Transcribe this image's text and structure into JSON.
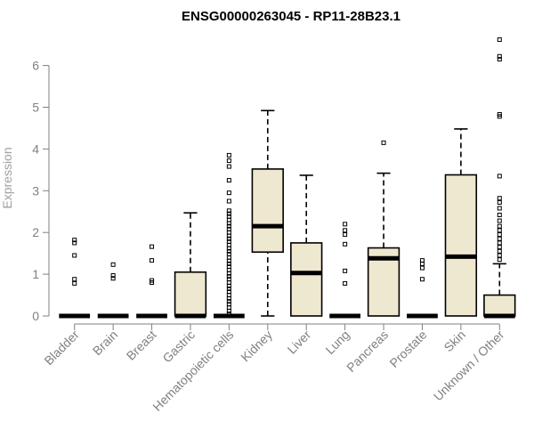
{
  "chart_data": {
    "type": "box",
    "title": "ENSG00000263045 - RP11-28B23.1",
    "xlabel": "",
    "ylabel": "Expression",
    "ylim": [
      0,
      6.7
    ],
    "yticks": [
      "0",
      "1",
      "2",
      "3",
      "4",
      "5",
      "6"
    ],
    "categories": [
      "Bladder",
      "Brain",
      "Breast",
      "Gastric",
      "Hematopoietic cells",
      "Kidney",
      "Liver",
      "Lung",
      "Pancreas",
      "Prostate",
      "Skin",
      "Unknown / Other"
    ],
    "box_fill": "#efe8d0",
    "box_stroke": "#000000",
    "boxes": [
      {
        "category": "Bladder",
        "min": 0,
        "q1": 0,
        "median": 0,
        "q3": 0,
        "max": 0,
        "outliers": [
          0.78,
          0.88,
          1.45,
          1.75,
          1.82
        ]
      },
      {
        "category": "Brain",
        "min": 0,
        "q1": 0,
        "median": 0,
        "q3": 0,
        "max": 0,
        "outliers": [
          0.9,
          0.97,
          1.23
        ]
      },
      {
        "category": "Breast",
        "min": 0,
        "q1": 0,
        "median": 0,
        "q3": 0,
        "max": 0,
        "outliers": [
          0.8,
          0.85,
          1.33,
          1.66
        ]
      },
      {
        "category": "Gastric",
        "min": 0,
        "q1": 0,
        "median": 0,
        "q3": 1.05,
        "max": 2.47,
        "outliers": []
      },
      {
        "category": "Hematopoietic cells",
        "min": 0,
        "q1": 0,
        "median": 0,
        "q3": 0,
        "max": 0,
        "outliers": [
          0.05,
          0.12,
          0.2,
          0.28,
          0.35,
          0.42,
          0.5,
          0.58,
          0.65,
          0.72,
          0.8,
          0.88,
          0.95,
          1.02,
          1.1,
          1.18,
          1.25,
          1.32,
          1.4,
          1.48,
          1.55,
          1.62,
          1.7,
          1.78,
          1.85,
          1.92,
          2.0,
          2.08,
          2.15,
          2.22,
          2.3,
          2.38,
          2.45,
          2.52,
          2.75,
          2.95,
          3.25,
          3.58,
          3.72,
          3.85
        ]
      },
      {
        "category": "Kidney",
        "min": 0,
        "q1": 1.53,
        "median": 2.15,
        "q3": 3.52,
        "max": 4.92,
        "outliers": []
      },
      {
        "category": "Liver",
        "min": 0,
        "q1": 0,
        "median": 1.03,
        "q3": 1.75,
        "max": 3.37,
        "outliers": []
      },
      {
        "category": "Lung",
        "min": 0,
        "q1": 0,
        "median": 0,
        "q3": 0,
        "max": 0,
        "outliers": [
          0.78,
          1.08,
          1.72,
          1.95,
          2.05,
          2.2
        ]
      },
      {
        "category": "Pancreas",
        "min": 0,
        "q1": 0,
        "median": 1.38,
        "q3": 1.63,
        "max": 3.42,
        "outliers": [
          4.15
        ]
      },
      {
        "category": "Prostate",
        "min": 0,
        "q1": 0,
        "median": 0,
        "q3": 0,
        "max": 0,
        "outliers": [
          0.88,
          1.15,
          1.25,
          1.33
        ]
      },
      {
        "category": "Skin",
        "min": 0,
        "q1": 0,
        "median": 1.42,
        "q3": 3.38,
        "max": 4.48,
        "outliers": []
      },
      {
        "category": "Unknown / Other",
        "min": 0,
        "q1": 0,
        "median": 0,
        "q3": 0.5,
        "max": 1.25,
        "outliers": [
          1.35,
          1.45,
          1.55,
          1.65,
          1.75,
          1.85,
          1.95,
          2.05,
          2.15,
          2.28,
          2.42,
          2.58,
          2.72,
          2.82,
          3.35,
          4.78,
          4.83,
          6.15,
          6.22,
          6.62
        ]
      }
    ]
  }
}
